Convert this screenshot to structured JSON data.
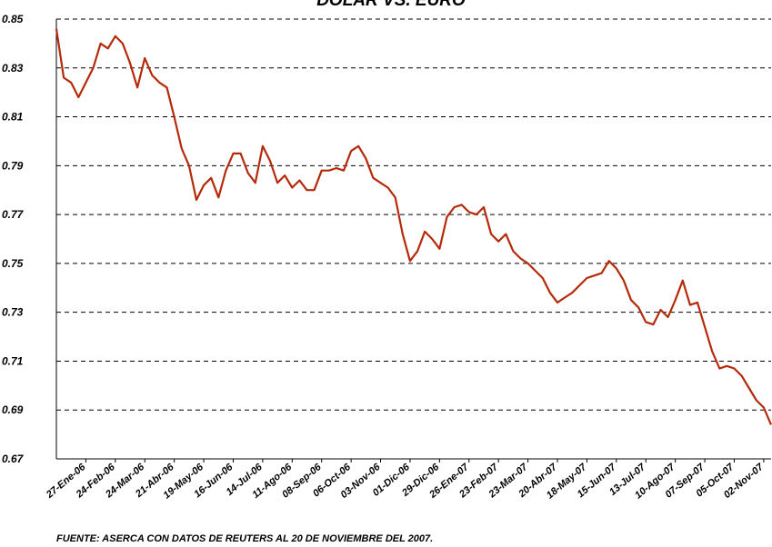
{
  "chart_data": {
    "type": "line",
    "title": "DOLAR VS. EURO",
    "note": "FUENTE: ASERCA CON DATOS DE REUTERS AL 20 DE NOVIEMBRE DEL 2007.",
    "color": "#b52a0a",
    "grid": true,
    "ylim": [
      0.67,
      0.85
    ],
    "yticks": [
      0.67,
      0.69,
      0.71,
      0.73,
      0.75,
      0.77,
      0.79,
      0.81,
      0.83,
      0.85
    ],
    "categories": [
      null,
      null,
      null,
      null,
      "27-Ene-06",
      null,
      null,
      null,
      "24-Feb-06",
      null,
      null,
      null,
      "24-Mar-06",
      null,
      null,
      null,
      "21-Abr-06",
      null,
      null,
      null,
      "19-May-06",
      null,
      null,
      null,
      "16-Jun-06",
      null,
      null,
      null,
      "14-Jul-06",
      null,
      null,
      null,
      "11-Ago-06",
      null,
      null,
      null,
      "08-Sep-06",
      null,
      null,
      null,
      "06-Oct-06",
      null,
      null,
      null,
      "03-Nov-06",
      null,
      null,
      null,
      "01-Dic-06",
      null,
      null,
      null,
      "29-Dic-06",
      null,
      null,
      null,
      "26-Ene-07",
      null,
      null,
      null,
      "23-Feb-07",
      null,
      null,
      null,
      "23-Mar-07",
      null,
      null,
      null,
      "20-Abr-07",
      null,
      null,
      null,
      "18-May-07",
      null,
      null,
      null,
      "15-Jun-07",
      null,
      null,
      null,
      "13-Jul-07",
      null,
      null,
      null,
      "10-Ago-07",
      null,
      null,
      null,
      "07-Sep-07",
      null,
      null,
      null,
      "05-Oct-07",
      null,
      null,
      null,
      "02-Nov-07",
      null
    ],
    "values": [
      0.846,
      0.826,
      0.824,
      0.818,
      0.824,
      0.83,
      0.84,
      0.838,
      0.843,
      0.84,
      0.832,
      0.822,
      0.834,
      0.827,
      0.824,
      0.822,
      0.81,
      0.797,
      0.79,
      0.776,
      0.782,
      0.785,
      0.777,
      0.788,
      0.795,
      0.795,
      0.787,
      0.783,
      0.798,
      0.792,
      0.783,
      0.786,
      0.781,
      0.784,
      0.78,
      0.78,
      0.788,
      0.788,
      0.789,
      0.788,
      0.796,
      0.798,
      0.793,
      0.785,
      0.783,
      0.781,
      0.777,
      0.762,
      0.751,
      0.755,
      0.763,
      0.76,
      0.756,
      0.769,
      0.773,
      0.774,
      0.771,
      0.77,
      0.773,
      0.762,
      0.759,
      0.762,
      0.755,
      0.752,
      0.75,
      0.747,
      0.744,
      0.738,
      0.734,
      0.736,
      0.738,
      0.741,
      0.744,
      0.745,
      0.746,
      0.751,
      0.748,
      0.743,
      0.735,
      0.732,
      0.726,
      0.725,
      0.731,
      0.728,
      0.735,
      0.743,
      0.733,
      0.734,
      0.724,
      0.714,
      0.707,
      0.708,
      0.707,
      0.704,
      0.699,
      0.694,
      0.691,
      0.684
    ]
  }
}
